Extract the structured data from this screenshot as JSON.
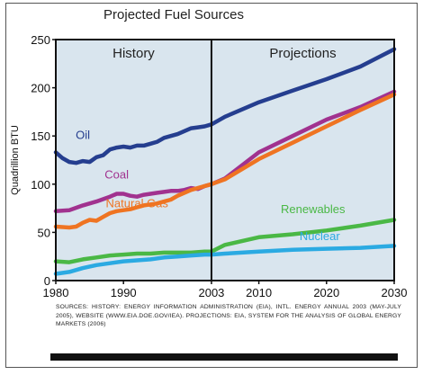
{
  "chart_data": {
    "type": "line",
    "title": "Projected Fuel Sources",
    "ylabel": "Quadrillion BTU",
    "xlabel": "",
    "xlim": [
      1980,
      2030
    ],
    "ylim": [
      0,
      250
    ],
    "x_ticks": [
      1980,
      1990,
      2003,
      2010,
      2020,
      2030
    ],
    "y_ticks": [
      0,
      50,
      100,
      150,
      200,
      250
    ],
    "grid": false,
    "divider_year": 2003,
    "regions": [
      {
        "label": "History",
        "from": 1980,
        "to": 2003
      },
      {
        "label": "Projections",
        "from": 2003,
        "to": 2030
      }
    ],
    "background_color": "#d9e5ee",
    "series": [
      {
        "name": "Oil",
        "color": "#253e8f",
        "points": [
          [
            1980,
            133
          ],
          [
            1981,
            127
          ],
          [
            1982,
            123
          ],
          [
            1983,
            122
          ],
          [
            1984,
            124
          ],
          [
            1985,
            123
          ],
          [
            1986,
            128
          ],
          [
            1987,
            130
          ],
          [
            1988,
            136
          ],
          [
            1989,
            138
          ],
          [
            1990,
            139
          ],
          [
            1991,
            138
          ],
          [
            1992,
            140
          ],
          [
            1993,
            140
          ],
          [
            1994,
            142
          ],
          [
            1995,
            144
          ],
          [
            1996,
            148
          ],
          [
            1997,
            150
          ],
          [
            1998,
            152
          ],
          [
            1999,
            155
          ],
          [
            2000,
            158
          ],
          [
            2001,
            159
          ],
          [
            2002,
            160
          ],
          [
            2003,
            162
          ],
          [
            2005,
            170
          ],
          [
            2010,
            185
          ],
          [
            2015,
            197
          ],
          [
            2020,
            209
          ],
          [
            2025,
            222
          ],
          [
            2030,
            240
          ]
        ]
      },
      {
        "name": "Coal",
        "color": "#a1328f",
        "points": [
          [
            1980,
            72
          ],
          [
            1982,
            73
          ],
          [
            1984,
            78
          ],
          [
            1986,
            82
          ],
          [
            1988,
            87
          ],
          [
            1989,
            90
          ],
          [
            1990,
            90
          ],
          [
            1991,
            88
          ],
          [
            1992,
            87
          ],
          [
            1993,
            89
          ],
          [
            1994,
            90
          ],
          [
            1995,
            91
          ],
          [
            1996,
            92
          ],
          [
            1997,
            93
          ],
          [
            1998,
            93
          ],
          [
            1999,
            94
          ],
          [
            2000,
            96
          ],
          [
            2001,
            95
          ],
          [
            2002,
            98
          ],
          [
            2003,
            100
          ],
          [
            2005,
            106
          ],
          [
            2010,
            133
          ],
          [
            2015,
            150
          ],
          [
            2020,
            167
          ],
          [
            2025,
            180
          ],
          [
            2030,
            196
          ]
        ]
      },
      {
        "name": "Natural Gas",
        "color": "#ef7422",
        "points": [
          [
            1980,
            56
          ],
          [
            1982,
            55
          ],
          [
            1983,
            56
          ],
          [
            1984,
            60
          ],
          [
            1985,
            63
          ],
          [
            1986,
            62
          ],
          [
            1987,
            66
          ],
          [
            1988,
            70
          ],
          [
            1989,
            72
          ],
          [
            1990,
            73
          ],
          [
            1991,
            74
          ],
          [
            1992,
            76
          ],
          [
            1993,
            78
          ],
          [
            1994,
            79
          ],
          [
            1995,
            80
          ],
          [
            1996,
            82
          ],
          [
            1997,
            84
          ],
          [
            1998,
            88
          ],
          [
            1999,
            91
          ],
          [
            2000,
            94
          ],
          [
            2001,
            96
          ],
          [
            2002,
            98
          ],
          [
            2003,
            100
          ],
          [
            2005,
            105
          ],
          [
            2010,
            126
          ],
          [
            2015,
            143
          ],
          [
            2020,
            160
          ],
          [
            2025,
            177
          ],
          [
            2030,
            193
          ]
        ]
      },
      {
        "name": "Renewables",
        "color": "#4ab845",
        "points": [
          [
            1980,
            20
          ],
          [
            1982,
            19
          ],
          [
            1984,
            22
          ],
          [
            1986,
            24
          ],
          [
            1988,
            26
          ],
          [
            1990,
            27
          ],
          [
            1992,
            28
          ],
          [
            1994,
            28
          ],
          [
            1996,
            29
          ],
          [
            1998,
            29
          ],
          [
            2000,
            29
          ],
          [
            2002,
            30
          ],
          [
            2003,
            30
          ],
          [
            2005,
            37
          ],
          [
            2010,
            45
          ],
          [
            2015,
            48
          ],
          [
            2020,
            52
          ],
          [
            2025,
            57
          ],
          [
            2030,
            63
          ]
        ]
      },
      {
        "name": "Nuclear",
        "color": "#2baae2",
        "points": [
          [
            1980,
            7
          ],
          [
            1982,
            9
          ],
          [
            1984,
            13
          ],
          [
            1986,
            16
          ],
          [
            1988,
            18
          ],
          [
            1990,
            20
          ],
          [
            1992,
            21
          ],
          [
            1994,
            22
          ],
          [
            1996,
            24
          ],
          [
            1998,
            25
          ],
          [
            2000,
            26
          ],
          [
            2002,
            27
          ],
          [
            2003,
            27
          ],
          [
            2005,
            28
          ],
          [
            2010,
            30
          ],
          [
            2015,
            32
          ],
          [
            2020,
            33
          ],
          [
            2025,
            34
          ],
          [
            2030,
            36
          ]
        ]
      }
    ],
    "labels": [
      {
        "text": "Oil",
        "series": "Oil",
        "at": [
          1984,
          147
        ]
      },
      {
        "text": "Coal",
        "series": "Coal",
        "at": [
          1989,
          106
        ]
      },
      {
        "text": "Natural Gas",
        "series": "Natural Gas",
        "at": [
          1992,
          76
        ]
      },
      {
        "text": "Renewables",
        "series": "Renewables",
        "at": [
          2018,
          70
        ]
      },
      {
        "text": "Nuclear",
        "series": "Nuclear",
        "at": [
          2019,
          42
        ]
      }
    ]
  },
  "sources_text": "SOURCES: HISTORY: ENERGY INFORMATION ADMINISTRATION (EIA), INTL. ENERGY ANNUAL 2003 (MAY-JULY 2005), WEBSITE (WWW.EIA.DOE.GOV/IEA). PROJECTIONS: EIA, SYSTEM FOR THE ANALYSIS OF GLOBAL ENERGY MARKETS (2006)"
}
